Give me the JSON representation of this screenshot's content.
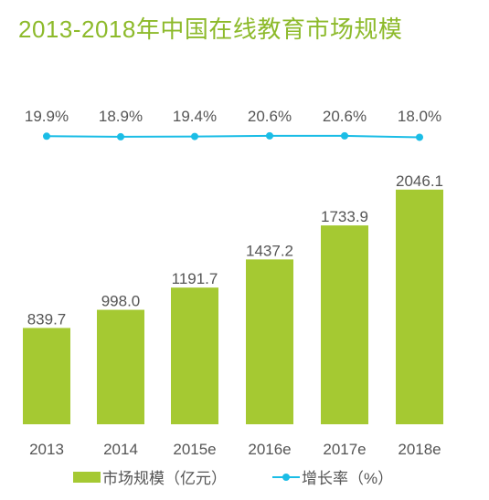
{
  "chart_data": {
    "type": "bar",
    "title": "2013-2018年中国在线教育市场规模",
    "categories": [
      "2013",
      "2014",
      "2015e",
      "2016e",
      "2017e",
      "2018e"
    ],
    "series": [
      {
        "name": "市场规模（亿元）",
        "type": "bar",
        "values": [
          839.7,
          998.0,
          1191.7,
          1437.2,
          1733.9,
          2046.1
        ],
        "labels": [
          "839.7",
          "998.0",
          "1191.7",
          "1437.2",
          "1733.9",
          "2046.1"
        ],
        "color": "#A5C932"
      },
      {
        "name": "增长率（%）",
        "type": "line",
        "values": [
          19.9,
          18.9,
          19.4,
          20.6,
          20.6,
          18.0
        ],
        "labels": [
          "19.9%",
          "18.9%",
          "19.4%",
          "20.6%",
          "20.6%",
          "18.0%"
        ],
        "color": "#1BBDE6"
      }
    ],
    "legend_position": "bottom",
    "grid": false,
    "title_color": "#8DBA2B"
  }
}
